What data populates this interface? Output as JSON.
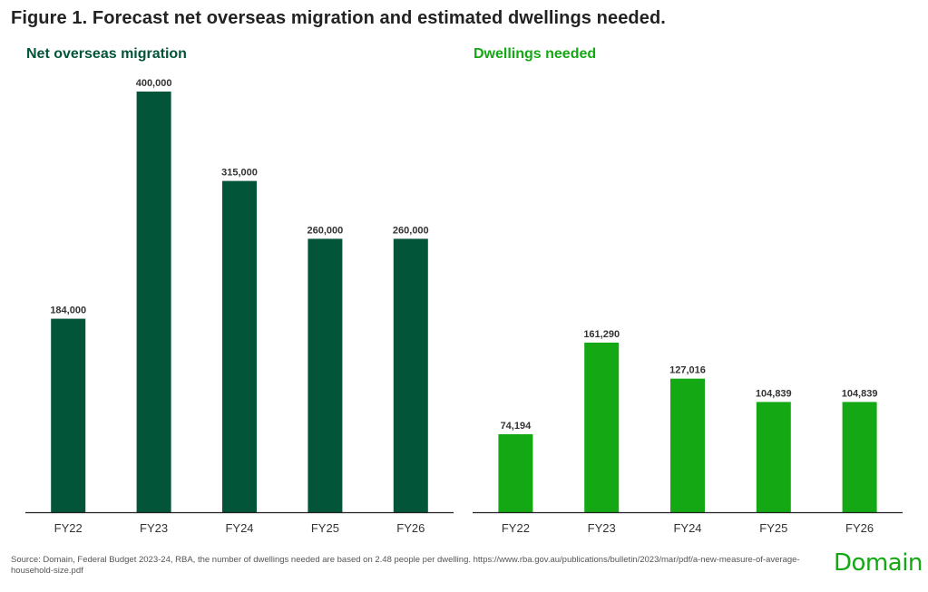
{
  "figure_title": "Figure 1. Forecast net overseas migration and estimated dwellings needed.",
  "source": "Source: Domain, Federal Budget 2023-24, RBA, the number of dwellings needed are based on 2.48 people per dwelling. https://www.rba.gov.au/publications/bulletin/2023/mar/pdf/a-new-measure-of-average-household-size.pdf",
  "logo_text": "Domain",
  "colors": {
    "left_series": "#03553a",
    "right_series": "#14a814",
    "axis": "#222222"
  },
  "chart_data": [
    {
      "type": "bar",
      "title": "Net overseas migration",
      "categories": [
        "FY22",
        "FY23",
        "FY24",
        "FY25",
        "FY26"
      ],
      "values": [
        184000,
        400000,
        315000,
        260000,
        260000
      ],
      "value_labels": [
        "184,000",
        "400,000",
        "315,000",
        "260,000",
        "260,000"
      ],
      "ylim": [
        0,
        400000
      ],
      "grid": false
    },
    {
      "type": "bar",
      "title": "Dwellings needed",
      "categories": [
        "FY22",
        "FY23",
        "FY24",
        "FY25",
        "FY26"
      ],
      "values": [
        74194,
        161290,
        127016,
        104839,
        104839
      ],
      "value_labels": [
        "74,194",
        "161,290",
        "127,016",
        "104,839",
        "104,839"
      ],
      "ylim": [
        0,
        400000
      ],
      "grid": false
    }
  ]
}
